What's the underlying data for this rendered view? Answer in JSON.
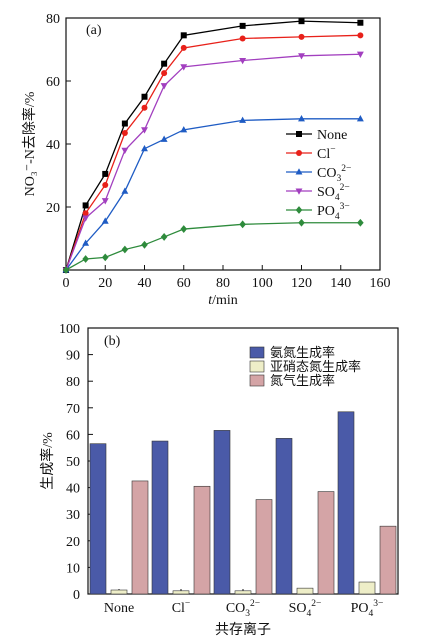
{
  "chart_data": [
    {
      "type": "line",
      "panel_label": "(a)",
      "title": "",
      "ylabel": "NO₃⁻-N去除率/%",
      "xlabel_italic": "t",
      "xlabel_rest": "/min",
      "xlim": [
        0,
        160
      ],
      "ylim": [
        0,
        80
      ],
      "xticks": [
        0,
        20,
        40,
        60,
        80,
        100,
        120,
        140,
        160
      ],
      "yticks": [
        20,
        40,
        60,
        80
      ],
      "grid": false,
      "legend_position": "right",
      "x": [
        0,
        10,
        20,
        30,
        40,
        50,
        60,
        90,
        120,
        150
      ],
      "series": [
        {
          "name": "None",
          "legend_base": "None",
          "legend_sub": "",
          "legend_sup": "",
          "color": "#000000",
          "marker": "square",
          "values": [
            0,
            20.5,
            30.5,
            46.5,
            55,
            65.5,
            74.5,
            77.5,
            79,
            78.5
          ]
        },
        {
          "name": "Cl⁻",
          "legend_base": "Cl",
          "legend_sub": "",
          "legend_sup": "−",
          "color": "#e8211a",
          "marker": "circle",
          "values": [
            0,
            18,
            27,
            43.5,
            51.5,
            62.5,
            70.5,
            73.5,
            74,
            74.5
          ]
        },
        {
          "name": "CO₃²⁻",
          "legend_base": "CO",
          "legend_sub": "3",
          "legend_sup": "2−",
          "color": "#1f5cc4",
          "marker": "triangle-up",
          "values": [
            0,
            8.5,
            15.5,
            25,
            38.5,
            41.5,
            44.5,
            47.5,
            48,
            48
          ]
        },
        {
          "name": "SO₄²⁻",
          "legend_base": "SO",
          "legend_sub": "4",
          "legend_sup": "2−",
          "color": "#a23fbf",
          "marker": "triangle-down",
          "values": [
            0,
            16.5,
            22,
            38,
            44.5,
            58.5,
            64.5,
            66.5,
            68,
            68.5
          ]
        },
        {
          "name": "PO₄³⁻",
          "legend_base": "PO",
          "legend_sub": "4",
          "legend_sup": "3−",
          "color": "#2e8b3c",
          "marker": "diamond",
          "values": [
            0,
            3.5,
            4,
            6.5,
            8,
            10.5,
            13,
            14.5,
            15,
            15
          ]
        }
      ]
    },
    {
      "type": "bar",
      "panel_label": "(b)",
      "title": "",
      "ylabel": "生成率/%",
      "xlabel": "共存离子",
      "ylim": [
        0,
        100
      ],
      "yticks": [
        0,
        10,
        20,
        30,
        40,
        50,
        60,
        70,
        80,
        90,
        100
      ],
      "grid": false,
      "legend_position": "top-right",
      "categories": [
        {
          "base": "None",
          "sub": "",
          "sup": ""
        },
        {
          "base": "Cl",
          "sub": "",
          "sup": "−"
        },
        {
          "base": "CO",
          "sub": "3",
          "sup": "2−"
        },
        {
          "base": "SO",
          "sub": "4",
          "sup": "2−"
        },
        {
          "base": "PO",
          "sub": "4",
          "sup": "3−"
        }
      ],
      "series": [
        {
          "name": "氨氮生成率",
          "color": "#4a5aa8",
          "values": [
            56.5,
            57.5,
            61.5,
            58.5,
            68.5
          ]
        },
        {
          "name": "亚硝态氮生成率",
          "color": "#eeeec8",
          "values": [
            1.5,
            1.2,
            1.2,
            2.2,
            4.5
          ]
        },
        {
          "name": "氮气生成率",
          "color": "#d4a4a6",
          "values": [
            42.5,
            40.5,
            35.5,
            38.5,
            25.5
          ]
        }
      ]
    }
  ]
}
